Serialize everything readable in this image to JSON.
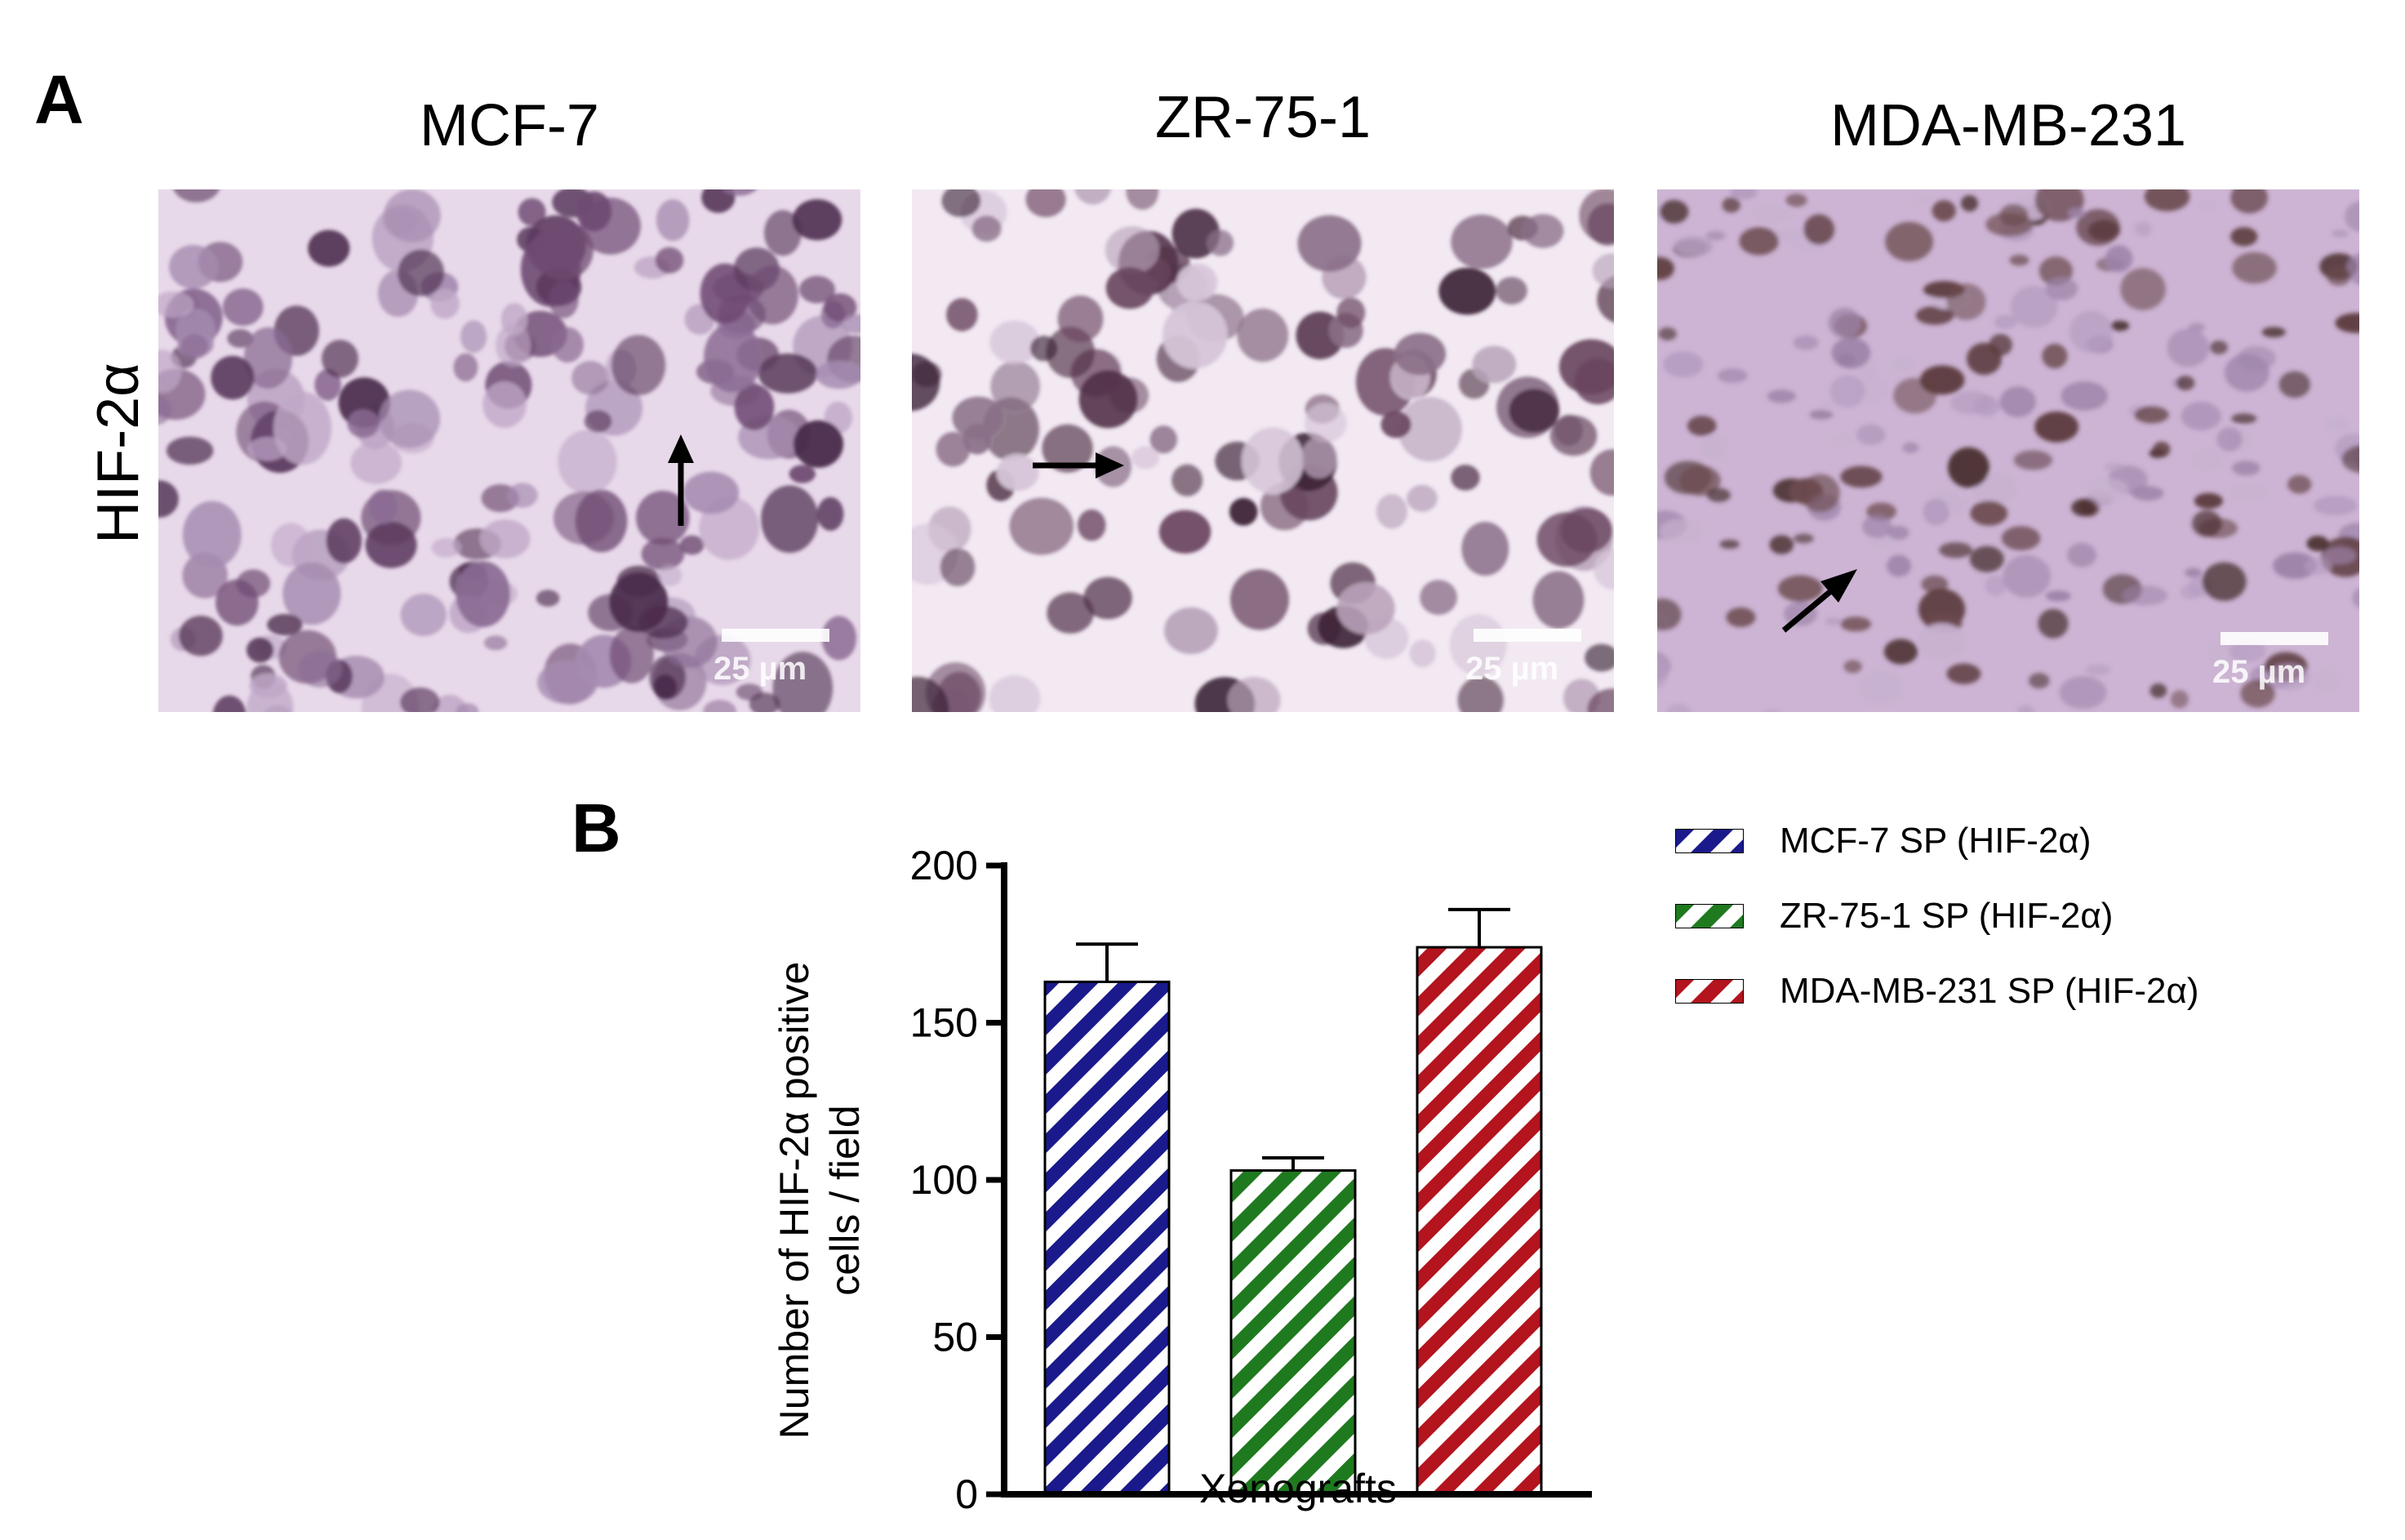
{
  "panelA": {
    "letter": "A",
    "row_label": "HIF-2α",
    "columns": [
      {
        "title": "MCF-7",
        "scale_label": "25 µm"
      },
      {
        "title": "ZR-75-1",
        "scale_label": "25 µm"
      },
      {
        "title": "MDA-MB-231",
        "scale_label": "25 µm"
      }
    ]
  },
  "panelB": {
    "letter": "B"
  },
  "colors": {
    "mcf7": "#1a1a8c",
    "zr751": "#1f7a1f",
    "mdamb231": "#b3141e",
    "stain_background": "#d9c4df",
    "nucleus": "#5a3552"
  },
  "chart_data": {
    "type": "bar",
    "categories": [
      "MCF-7 SP (HIF-2α)",
      "ZR-75-1 SP (HIF-2α)",
      "MDA-MB-231 SP (HIF-2α)"
    ],
    "values": [
      163,
      103,
      174
    ],
    "errors": [
      12,
      4,
      12
    ],
    "xlabel": "Xenografts",
    "ylabel_lines": [
      "Number of HIF-2α positive",
      "cells / field"
    ],
    "ylim": [
      0,
      200
    ],
    "yticks": [
      0,
      50,
      100,
      150,
      200
    ],
    "ytick_labels": [
      "0",
      "50",
      "100",
      "150",
      "200"
    ],
    "bar_pattern": "diagonal-stripes",
    "grid": false,
    "legend_position": "right",
    "legend": [
      {
        "label": "MCF-7 SP (HIF-2α)",
        "color": "#1a1a8c"
      },
      {
        "label": "ZR-75-1 SP (HIF-2α)",
        "color": "#1f7a1f"
      },
      {
        "label": "MDA-MB-231 SP (HIF-2α)",
        "color": "#b3141e"
      }
    ]
  }
}
